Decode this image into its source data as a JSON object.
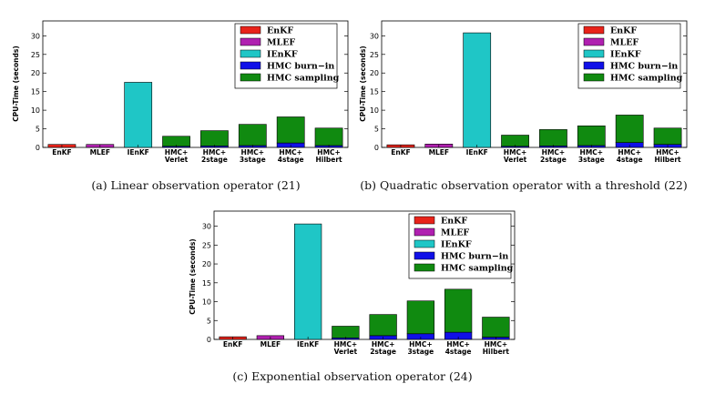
{
  "colors": {
    "EnKF": "#e8231a",
    "MLEF": "#b020b0",
    "IEnKF": "#1fc6c6",
    "burnin": "#1010e8",
    "sampling": "#108a10"
  },
  "chart_data": [
    {
      "type": "bar",
      "stacked": true,
      "caption": "(a)  Linear observation operator (21)",
      "ylabel": "CPU-Time (seconds)",
      "ylim": [
        0,
        34
      ],
      "yticks": [
        0,
        5,
        10,
        15,
        20,
        25,
        30
      ],
      "categories": [
        [
          "EnKF"
        ],
        [
          "MLEF"
        ],
        [
          "IEnKF"
        ],
        [
          "HMC+",
          "Verlet"
        ],
        [
          "HMC+",
          "2stage"
        ],
        [
          "HMC+",
          "3stage"
        ],
        [
          "HMC+",
          "4stage"
        ],
        [
          "HMC+",
          "Hilbert"
        ]
      ],
      "series": [
        {
          "name": "EnKF",
          "values": [
            0.8,
            0,
            0,
            0,
            0,
            0,
            0,
            0
          ]
        },
        {
          "name": "MLEF",
          "values": [
            0,
            0.8,
            0,
            0,
            0,
            0,
            0,
            0
          ]
        },
        {
          "name": "IEnKF",
          "values": [
            0,
            0,
            17.5,
            0,
            0,
            0,
            0,
            0
          ]
        },
        {
          "name": "HMC burn−in",
          "values": [
            0,
            0,
            0,
            0.3,
            0.4,
            0.5,
            1.2,
            0.5
          ]
        },
        {
          "name": "HMC sampling",
          "values": [
            0,
            0,
            0,
            2.7,
            4.1,
            5.7,
            7.0,
            4.7
          ]
        }
      ],
      "legend": [
        "EnKF",
        "MLEF",
        "IEnKF",
        "HMC burn−in",
        "HMC sampling"
      ],
      "legend_position": "top-right"
    },
    {
      "type": "bar",
      "stacked": true,
      "caption": "(b)  Quadratic observation operator with a threshold (22)",
      "ylabel": "CPU-Time (seconds)",
      "ylim": [
        0,
        34
      ],
      "yticks": [
        0,
        5,
        10,
        15,
        20,
        25,
        30
      ],
      "categories": [
        [
          "EnKF"
        ],
        [
          "MLEF"
        ],
        [
          "IEnKF"
        ],
        [
          "HMC+",
          "Verlet"
        ],
        [
          "HMC+",
          "2stage"
        ],
        [
          "HMC+",
          "3stage"
        ],
        [
          "HMC+",
          "4stage"
        ],
        [
          "HMC+",
          "Hilbert"
        ]
      ],
      "series": [
        {
          "name": "EnKF",
          "values": [
            0.7,
            0,
            0,
            0,
            0,
            0,
            0,
            0
          ]
        },
        {
          "name": "MLEF",
          "values": [
            0,
            0.9,
            0,
            0,
            0,
            0,
            0,
            0
          ]
        },
        {
          "name": "IEnKF",
          "values": [
            0,
            0,
            30.8,
            0,
            0,
            0,
            0,
            0
          ]
        },
        {
          "name": "HMC burn−in",
          "values": [
            0,
            0,
            0,
            0.3,
            0.4,
            0.5,
            1.3,
            0.8
          ]
        },
        {
          "name": "HMC sampling",
          "values": [
            0,
            0,
            0,
            3.0,
            4.4,
            5.3,
            7.4,
            4.4
          ]
        }
      ],
      "legend": [
        "EnKF",
        "MLEF",
        "IEnKF",
        "HMC burn−in",
        "HMC sampling"
      ],
      "legend_position": "top-right"
    },
    {
      "type": "bar",
      "stacked": true,
      "caption": "(c)  Exponential observation operator (24)",
      "ylabel": "CPU-Time (seconds)",
      "ylim": [
        0,
        34
      ],
      "yticks": [
        0,
        5,
        10,
        15,
        20,
        25,
        30
      ],
      "categories": [
        [
          "EnKF"
        ],
        [
          "MLEF"
        ],
        [
          "IEnKF"
        ],
        [
          "HMC+",
          "Verlet"
        ],
        [
          "HMC+",
          "2stage"
        ],
        [
          "HMC+",
          "3stage"
        ],
        [
          "HMC+",
          "4stage"
        ],
        [
          "HMC+",
          "Hilbert"
        ]
      ],
      "series": [
        {
          "name": "EnKF",
          "values": [
            0.7,
            0,
            0,
            0,
            0,
            0,
            0,
            0
          ]
        },
        {
          "name": "MLEF",
          "values": [
            0,
            1.0,
            0,
            0,
            0,
            0,
            0,
            0
          ]
        },
        {
          "name": "IEnKF",
          "values": [
            0,
            0,
            30.6,
            0,
            0,
            0,
            0,
            0
          ]
        },
        {
          "name": "HMC burn−in",
          "values": [
            0,
            0,
            0,
            0.4,
            1.0,
            1.5,
            1.9,
            0.6
          ]
        },
        {
          "name": "HMC sampling",
          "values": [
            0,
            0,
            0,
            3.1,
            5.6,
            8.7,
            11.4,
            5.3
          ]
        }
      ],
      "legend": [
        "EnKF",
        "MLEF",
        "IEnKF",
        "HMC burn−in",
        "HMC sampling"
      ],
      "legend_position": "top-right"
    }
  ]
}
